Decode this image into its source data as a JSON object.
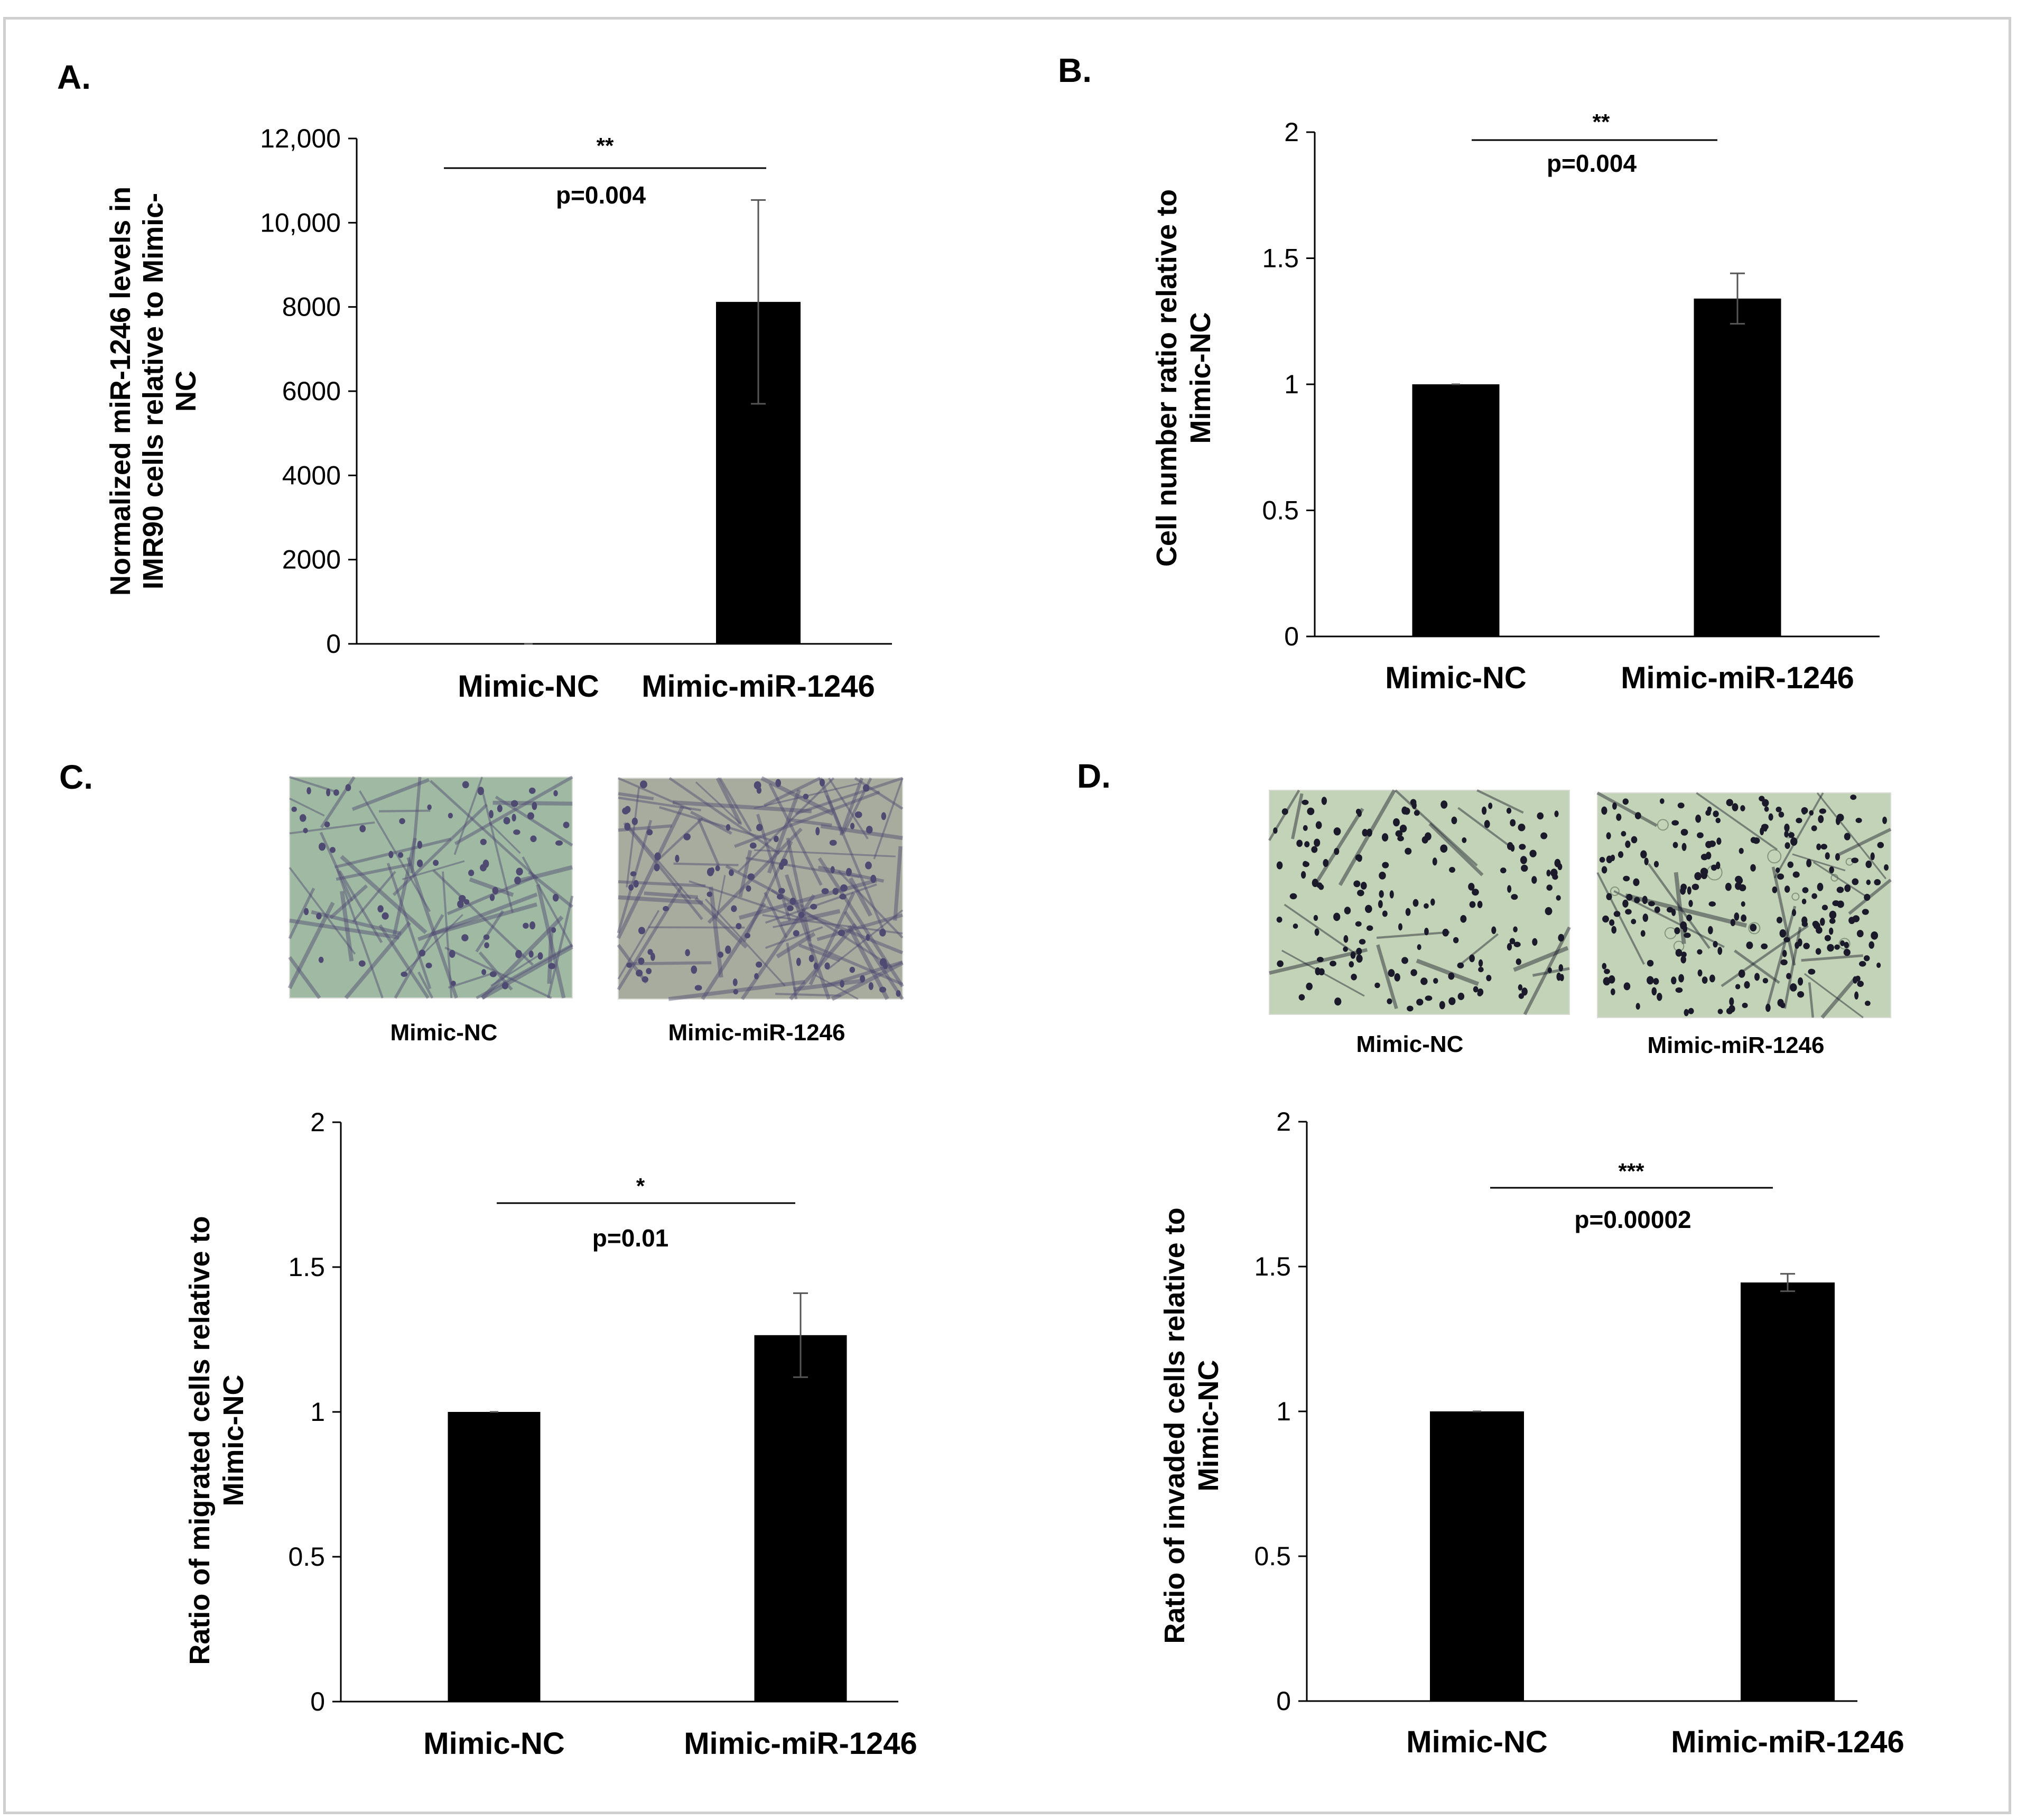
{
  "chart_data": [
    {
      "panel": "A.",
      "type": "bar",
      "categories": [
        "Mimic-NC",
        "Mimic-miR-1246"
      ],
      "values": [
        1,
        8120
      ],
      "error": [
        0,
        2420
      ],
      "ylabel": [
        "Normalized miR-1246 levels in",
        "IMR90 cells relative to Mimic-",
        "NC"
      ],
      "ylim": [
        0,
        12000
      ],
      "yticks": [
        0,
        2000,
        4000,
        6000,
        8000,
        10000,
        12000
      ],
      "ytick_labels": [
        "0",
        "2000",
        "4000",
        "6000",
        "8000",
        "10,000",
        "12,000"
      ],
      "significance": "**",
      "pvalue": "p=0.004",
      "bar_color": "#000000"
    },
    {
      "panel": "B.",
      "type": "bar",
      "categories": [
        "Mimic-NC",
        "Mimic-miR-1246"
      ],
      "values": [
        1.0,
        1.34
      ],
      "error": [
        0,
        0.1
      ],
      "ylabel": [
        "Cell number ratio relative to",
        "Mimic-NC"
      ],
      "ylim": [
        0,
        2
      ],
      "yticks": [
        0,
        0.5,
        1,
        1.5,
        2
      ],
      "ytick_labels": [
        "0",
        "0.5",
        "1",
        "1.5",
        "2"
      ],
      "significance": "**",
      "pvalue": "p=0.004",
      "bar_color": "#000000"
    },
    {
      "panel": "C.",
      "type": "bar",
      "categories": [
        "Mimic-NC",
        "Mimic-miR-1246"
      ],
      "values": [
        1.0,
        1.265
      ],
      "error": [
        0,
        0.145
      ],
      "ylabel": [
        "Ratio of migrated cells relative to",
        "Mimic-NC"
      ],
      "ylim": [
        0,
        2
      ],
      "yticks": [
        0,
        0.5,
        1,
        1.5,
        2
      ],
      "ytick_labels": [
        "0",
        "0.5",
        "1",
        "1.5",
        "2"
      ],
      "significance": "*",
      "pvalue": "p=0.01",
      "bar_color": "#000000"
    },
    {
      "panel": "D.",
      "type": "bar",
      "categories": [
        "Mimic-NC",
        "Mimic-miR-1246"
      ],
      "values": [
        1.0,
        1.445
      ],
      "error": [
        0,
        0.03
      ],
      "ylabel": [
        "Ratio of invaded cells relative to",
        "Mimic-NC"
      ],
      "ylim": [
        0,
        2
      ],
      "yticks": [
        0,
        0.5,
        1,
        1.5,
        2
      ],
      "ytick_labels": [
        "0",
        "0.5",
        "1",
        "1.5",
        "2"
      ],
      "significance": "***",
      "pvalue": "p=0.00002",
      "bar_color": "#000000"
    }
  ],
  "micrographs": {
    "C": {
      "labels": [
        "Mimic-NC",
        "Mimic-miR-1246"
      ],
      "background": "#9fb9a2",
      "cell_color": "#4f4a72"
    },
    "D": {
      "labels": [
        "Mimic-NC",
        "Mimic-miR-1246"
      ],
      "background": "#c3d3b7",
      "cell_color": "#1a1a2a"
    }
  }
}
